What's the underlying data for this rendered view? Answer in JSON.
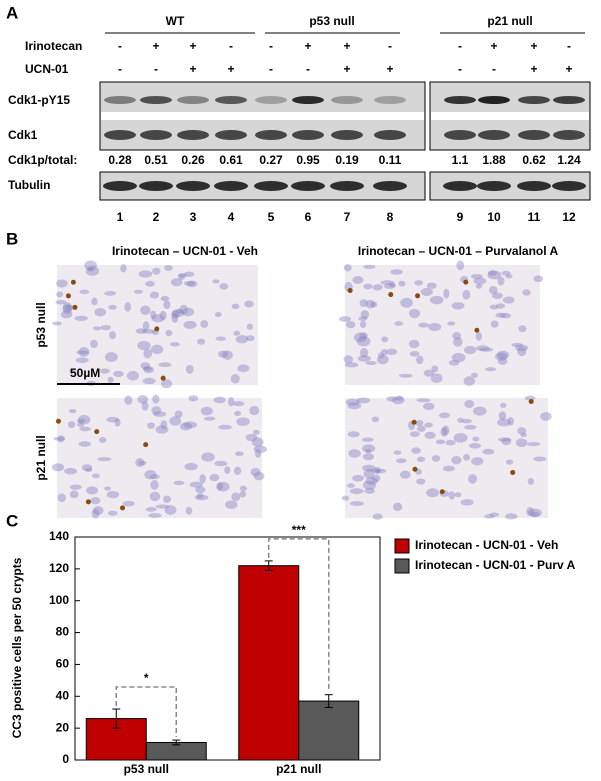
{
  "panel_a": {
    "label": "A",
    "groups": [
      "WT",
      "p53 null",
      "p21 null"
    ],
    "treatments": [
      {
        "name": "Irinotecan",
        "signs": [
          "-",
          "+",
          "+",
          "-",
          "-",
          "+",
          "+",
          "-",
          "-",
          "+",
          "+",
          "-"
        ]
      },
      {
        "name": "UCN-01",
        "signs": [
          "-",
          "-",
          "+",
          "+",
          "-",
          "-",
          "+",
          "+",
          "-",
          "-",
          "+",
          "+"
        ]
      }
    ],
    "blots": [
      "Cdk1-pY15",
      "Cdk1",
      "Tubulin"
    ],
    "ratio_label": "Cdk1p/total:",
    "ratios": [
      0.28,
      0.51,
      0.26,
      0.61,
      0.27,
      0.95,
      0.19,
      0.11,
      1.1,
      1.88,
      0.62,
      1.24
    ],
    "lanes": [
      1,
      2,
      3,
      4,
      5,
      6,
      7,
      8,
      9,
      10,
      11,
      12
    ]
  },
  "panel_b": {
    "label": "B",
    "titles": [
      "Irinotecan – UCN-01 - Veh",
      "Irinotecan – UCN-01 – Purvalanol A"
    ],
    "rows": [
      "p53 null",
      "p21 null"
    ],
    "scale_bar": "50µM"
  },
  "panel_c": {
    "label": "C"
  },
  "chart_data": {
    "type": "bar",
    "y_label": "CC3 positive cells per 50 crypts",
    "categories": [
      "p53 null",
      "p21 null"
    ],
    "series": [
      {
        "name": "Irinotecan - UCN-01 - Veh",
        "color": "#c00000",
        "values": [
          26,
          122
        ],
        "errors": [
          6,
          3
        ]
      },
      {
        "name": "Irinotecan - UCN-01 - Purv A",
        "color": "#595959",
        "values": [
          11,
          37
        ],
        "errors": [
          1.5,
          4
        ]
      }
    ],
    "ylim": [
      0,
      140
    ],
    "yticks": [
      0,
      20,
      40,
      60,
      80,
      100,
      120,
      140
    ],
    "annotations": [
      "*",
      "***"
    ],
    "legend": "right"
  }
}
